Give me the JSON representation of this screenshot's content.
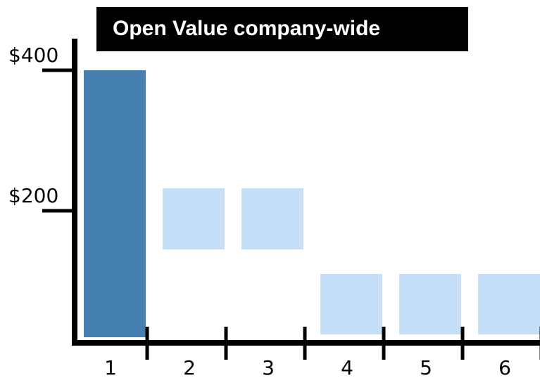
{
  "chart_data": {
    "type": "bar",
    "title": "Open Value company-wide",
    "categories": [
      "1",
      "2",
      "3",
      "4",
      "5",
      "6"
    ],
    "bases": [
      20,
      145,
      145,
      24,
      24,
      24
    ],
    "values": [
      400,
      232,
      232,
      110,
      110,
      110
    ],
    "colors": [
      "#4580b1",
      "#c6dff8",
      "#c6dff8",
      "#c6dff8",
      "#c6dff8",
      "#c6dff8"
    ],
    "ylim": [
      10,
      445
    ],
    "yticks": [
      {
        "value": 200,
        "label": "$200"
      },
      {
        "value": 400,
        "label": "$400"
      }
    ]
  }
}
